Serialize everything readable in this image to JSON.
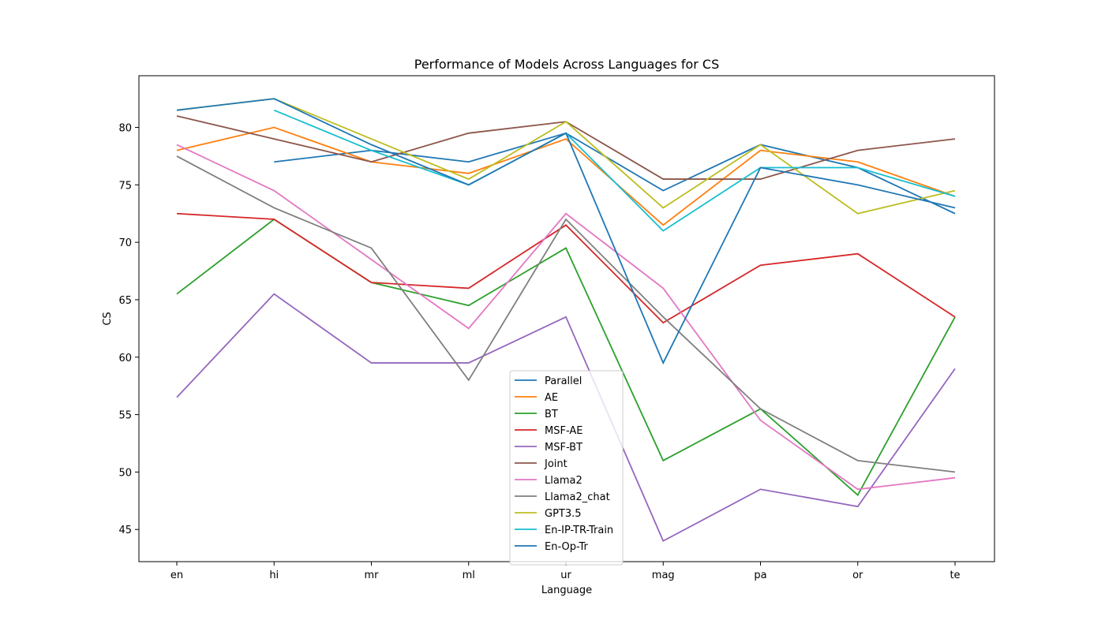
{
  "chart_data": {
    "type": "line",
    "title": "Performance of Models Across Languages for CS",
    "xlabel": "Language",
    "ylabel": "CS",
    "categories": [
      "en",
      "hi",
      "mr",
      "ml",
      "ur",
      "mag",
      "pa",
      "or",
      "te"
    ],
    "ylim": [
      42.2,
      84.5
    ],
    "yticks": [
      45,
      50,
      55,
      60,
      65,
      70,
      75,
      80
    ],
    "grid": false,
    "legend_position": "lower-center",
    "series": [
      {
        "name": "Parallel",
        "color": "#1f77b4",
        "values": [
          null,
          77.0,
          78.0,
          77.0,
          79.5,
          74.5,
          78.5,
          76.5,
          72.5
        ]
      },
      {
        "name": "AE",
        "color": "#ff7f0e",
        "values": [
          78.0,
          80.0,
          77.0,
          76.0,
          79.0,
          71.5,
          78.0,
          77.0,
          74.0
        ]
      },
      {
        "name": "BT",
        "color": "#2ca02c",
        "values": [
          65.5,
          72.0,
          66.5,
          64.5,
          69.5,
          51.0,
          55.5,
          48.0,
          63.5
        ]
      },
      {
        "name": "MSF-AE",
        "color": "#d62728",
        "values": [
          72.5,
          72.0,
          66.5,
          66.0,
          71.5,
          63.0,
          68.0,
          69.0,
          63.5
        ]
      },
      {
        "name": "MSF-BT",
        "color": "#9467bd",
        "values": [
          56.5,
          65.5,
          59.5,
          59.5,
          63.5,
          44.0,
          48.5,
          47.0,
          59.0
        ]
      },
      {
        "name": "Joint",
        "color": "#8c564b",
        "values": [
          81.0,
          79.0,
          77.0,
          79.5,
          80.5,
          75.5,
          75.5,
          78.0,
          79.0
        ]
      },
      {
        "name": "Llama2",
        "color": "#e377c2",
        "values": [
          78.5,
          74.5,
          68.5,
          62.5,
          72.5,
          66.0,
          54.5,
          48.5,
          49.5
        ]
      },
      {
        "name": "Llama2_chat",
        "color": "#7f7f7f",
        "values": [
          77.5,
          73.0,
          69.5,
          58.0,
          72.0,
          63.5,
          55.5,
          51.0,
          50.0
        ]
      },
      {
        "name": "GPT3.5",
        "color": "#bcbd22",
        "values": [
          81.5,
          82.5,
          79.0,
          75.5,
          80.5,
          73.0,
          78.5,
          72.5,
          74.5
        ]
      },
      {
        "name": "En-IP-TR-Train",
        "color": "#17becf",
        "values": [
          null,
          81.5,
          78.0,
          75.0,
          79.5,
          71.0,
          76.5,
          76.5,
          74.0
        ]
      },
      {
        "name": "En-Op-Tr",
        "color": "#1f77b4",
        "values": [
          81.5,
          82.5,
          78.5,
          75.0,
          79.5,
          59.5,
          76.5,
          75.0,
          73.0
        ]
      }
    ]
  }
}
